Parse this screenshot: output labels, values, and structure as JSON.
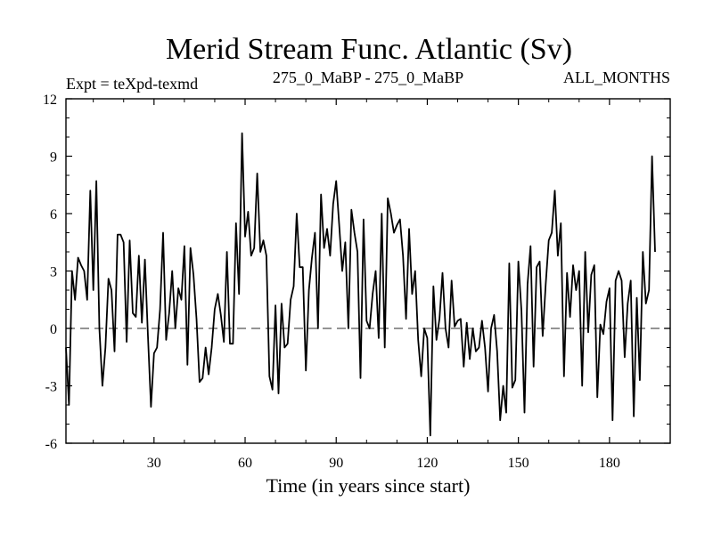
{
  "chart_data": {
    "type": "line",
    "title": "Merid Stream Func. Atlantic (Sv)",
    "subtitle_left": "Expt = teXpd-texmd",
    "subtitle_center": "275_0_MaBP - 275_0_MaBP",
    "subtitle_right": "ALL_MONTHS",
    "xlabel": "Time (in years since start)",
    "ylabel": "",
    "xlim": [
      1,
      200
    ],
    "ylim": [
      -6,
      12
    ],
    "xticks": [
      30,
      60,
      90,
      120,
      150,
      180
    ],
    "yticks": [
      -6,
      -3,
      0,
      3,
      6,
      9,
      12
    ],
    "zero_line": true,
    "series": [
      {
        "name": "Merid Stream Func. Atlantic",
        "x_start": 1,
        "x_step": 1,
        "values": [
          -1.0,
          -4.0,
          3.0,
          1.5,
          3.7,
          3.3,
          3.0,
          1.5,
          7.2,
          2.0,
          7.7,
          0.0,
          -3.0,
          -1.0,
          2.6,
          2.0,
          -1.2,
          4.9,
          4.9,
          4.5,
          -0.7,
          4.6,
          0.8,
          0.6,
          3.8,
          0.3,
          3.6,
          -0.4,
          -4.1,
          -1.3,
          -1.0,
          1.0,
          5.0,
          -0.6,
          0.8,
          3.0,
          0.0,
          2.1,
          1.5,
          4.3,
          -1.9,
          4.2,
          2.8,
          0.5,
          -2.8,
          -2.6,
          -1.0,
          -2.4,
          -1.0,
          1.0,
          1.8,
          0.7,
          -0.7,
          4.0,
          -0.8,
          -0.8,
          5.5,
          1.8,
          10.2,
          4.8,
          6.1,
          3.8,
          4.2,
          8.1,
          4.0,
          4.6,
          3.8,
          -2.5,
          -3.2,
          1.2,
          -3.4,
          1.3,
          -1.0,
          -0.8,
          1.5,
          2.2,
          6.0,
          3.2,
          3.2,
          -2.2,
          2.0,
          3.7,
          5.0,
          0.0,
          7.0,
          4.2,
          5.2,
          3.8,
          6.5,
          7.7,
          5.4,
          3.0,
          4.5,
          0.0,
          6.2,
          5.0,
          4.0,
          -2.6,
          5.7,
          0.4,
          0.0,
          1.8,
          3.0,
          -0.5,
          6.0,
          -1.0,
          6.8,
          6.0,
          5.0,
          5.4,
          5.7,
          3.8,
          0.5,
          5.2,
          1.8,
          3.0,
          -0.6,
          -2.5,
          0.0,
          -0.5,
          -5.6,
          2.2,
          -0.6,
          0.5,
          2.9,
          0.0,
          -1.0,
          2.5,
          0.1,
          0.4,
          0.5,
          -2.0,
          0.3,
          -1.6,
          0.0,
          -1.2,
          -1.0,
          0.4,
          -1.0,
          -3.3,
          0.0,
          0.7,
          -1.2,
          -4.8,
          -3.0,
          -4.4,
          3.4,
          -3.1,
          -2.7,
          3.5,
          0.9,
          -4.4,
          2.3,
          4.3,
          -2.0,
          3.2,
          3.5,
          -0.4,
          2.3,
          4.6,
          5.0,
          7.2,
          3.8,
          5.5,
          -2.5,
          2.9,
          0.6,
          3.3,
          2.0,
          3.0,
          -3.0,
          4.0,
          -0.2,
          2.8,
          3.3,
          -3.6,
          0.2,
          -0.3,
          1.4,
          2.1,
          -4.8,
          2.5,
          3.0,
          2.5,
          -1.5,
          1.3,
          2.5,
          -4.6,
          1.6,
          -2.7,
          4.0,
          1.3,
          2.0,
          9.0,
          4.0
        ]
      }
    ],
    "colors": {
      "line": "#000000",
      "zero_line": "#555555",
      "axes": "#000000",
      "background": "#ffffff"
    }
  }
}
